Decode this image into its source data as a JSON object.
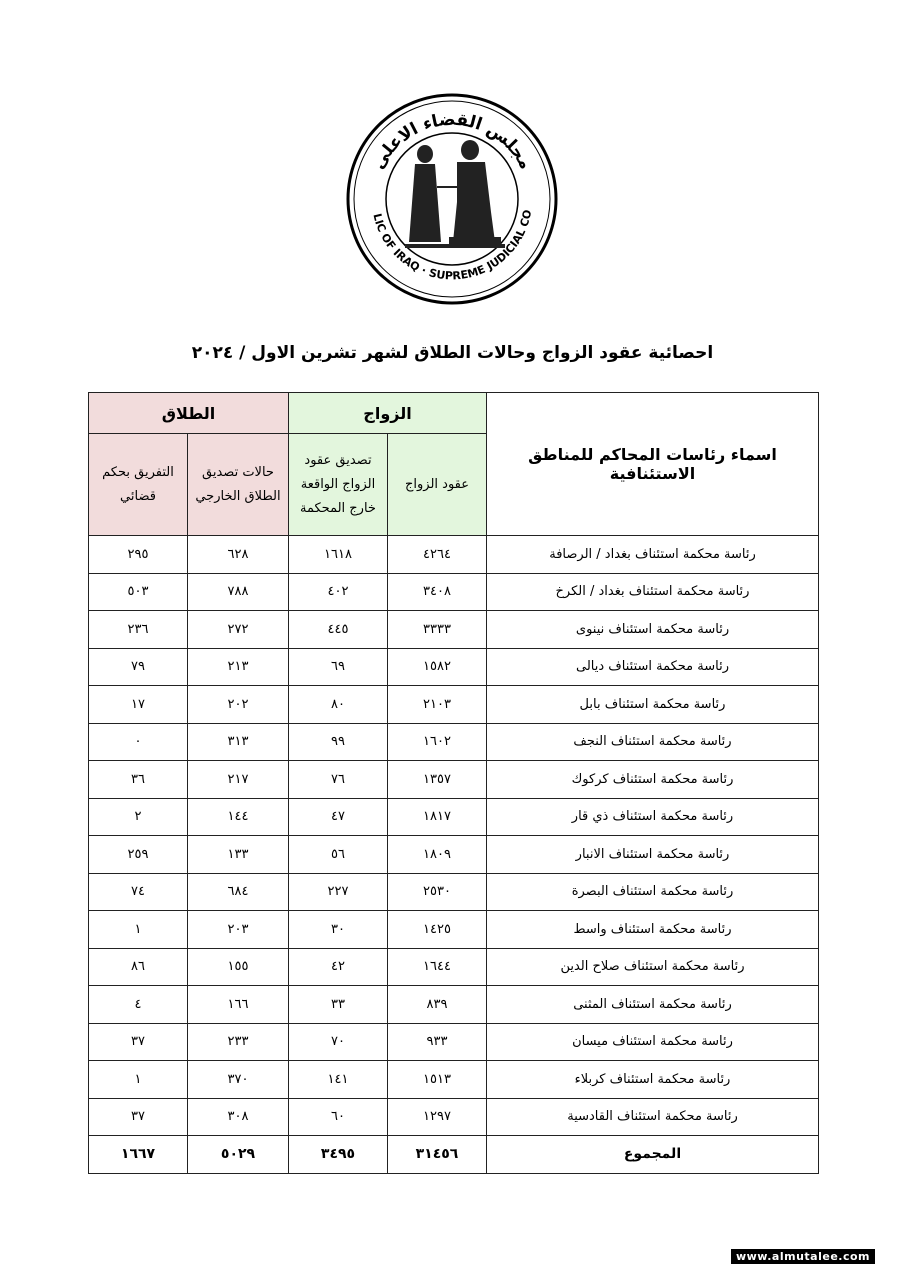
{
  "logo": {
    "arabic_text": "جمهورية العراق مجلس القضاء الاعلى",
    "english_text": "REPUBLIC OF IRAQ SUPREME JUDICIAL COUNCIL"
  },
  "title": "احصائية عقود الزواج وحالات الطلاق لشهر تشرين الاول / ٢٠٢٤",
  "table": {
    "region_header": "اسماء رئاسات المحاكم للمناطق الاستئنافية",
    "marriage_group": "الزواج",
    "divorce_group": "الطلاق",
    "columns": [
      "عقود الزواج",
      "تصديق عقود الزواج الواقعة خارج المحكمة",
      "حالات تصديق الطلاق الخارجي",
      "التفريق بحكم قضائي"
    ],
    "rows": [
      [
        "رئاسة محكمة استئناف بغداد / الرصافة",
        "٤٢٦٤",
        "١٦١٨",
        "٦٢٨",
        "٢٩٥"
      ],
      [
        "رئاسة محكمة استئناف بغداد / الكرخ",
        "٣٤٠٨",
        "٤٠٢",
        "٧٨٨",
        "٥٠٣"
      ],
      [
        "رئاسة محكمة استئناف نينوى",
        "٣٣٣٣",
        "٤٤٥",
        "٢٧٢",
        "٢٣٦"
      ],
      [
        "رئاسة محكمة استئناف ديالى",
        "١٥٨٢",
        "٦٩",
        "٢١٣",
        "٧٩"
      ],
      [
        "رئاسة محكمة استئناف بابل",
        "٢١٠٣",
        "٨٠",
        "٢٠٢",
        "١٧"
      ],
      [
        "رئاسة محكمة استئناف النجف",
        "١٦٠٢",
        "٩٩",
        "٣١٣",
        "٠"
      ],
      [
        "رئاسة محكمة استئناف كركوك",
        "١٣٥٧",
        "٧٦",
        "٢١٧",
        "٣٦"
      ],
      [
        "رئاسة محكمة استئناف ذي قار",
        "١٨١٧",
        "٤٧",
        "١٤٤",
        "٢"
      ],
      [
        "رئاسة محكمة استئناف الانبار",
        "١٨٠٩",
        "٥٦",
        "١٣٣",
        "٢٥٩"
      ],
      [
        "رئاسة محكمة استئناف البصرة",
        "٢٥٣٠",
        "٢٢٧",
        "٦٨٤",
        "٧٤"
      ],
      [
        "رئاسة محكمة استئناف واسط",
        "١٤٢٥",
        "٣٠",
        "٢٠٣",
        "١"
      ],
      [
        "رئاسة محكمة استئناف صلاح الدين",
        "١٦٤٤",
        "٤٢",
        "١٥٥",
        "٨٦"
      ],
      [
        "رئاسة محكمة استئناف المثنى",
        "٨٣٩",
        "٣٣",
        "١٦٦",
        "٤"
      ],
      [
        "رئاسة محكمة استئناف ميسان",
        "٩٣٣",
        "٧٠",
        "٢٣٣",
        "٣٧"
      ],
      [
        "رئاسة محكمة استئناف كربلاء",
        "١٥١٣",
        "١٤١",
        "٣٧٠",
        "١"
      ],
      [
        "رئاسة محكمة استئناف القادسية",
        "١٢٩٧",
        "٦٠",
        "٣٠٨",
        "٣٧"
      ]
    ],
    "total": [
      "المجموع",
      "٣١٤٥٦",
      "٣٤٩٥",
      "٥٠٢٩",
      "١٦٦٧"
    ]
  },
  "watermark": "www.almutalee.com",
  "colors": {
    "marriage": "#e3f6dd",
    "divorce": "#f2dcdc"
  }
}
